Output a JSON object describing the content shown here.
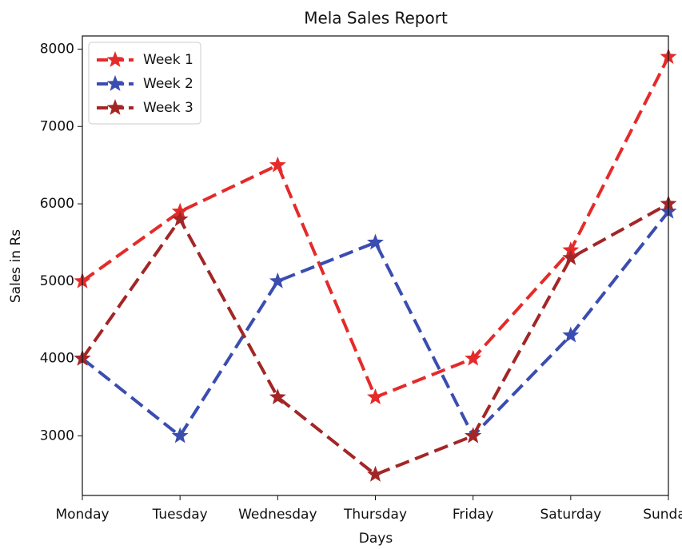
{
  "chart_data": {
    "type": "line",
    "title": "Mela Sales Report",
    "x_label": "Days",
    "y_label": "Sales in Rs",
    "categories": [
      "Monday",
      "Tuesday",
      "Wednesday",
      "Thursday",
      "Friday",
      "Saturday",
      "Sunday"
    ],
    "series": [
      {
        "name": "Week 1",
        "color": "#e52a2a",
        "values": [
          5000,
          5900,
          6500,
          3500,
          4000,
          5400,
          7900
        ]
      },
      {
        "name": "Week 2",
        "color": "#3a4db0",
        "values": [
          4000,
          3000,
          5000,
          5500,
          3000,
          4300,
          5900
        ]
      },
      {
        "name": "Week 3",
        "color": "#a32626",
        "values": [
          4000,
          5800,
          3500,
          2500,
          3000,
          5300,
          6000
        ]
      }
    ],
    "ylim": [
      2230,
      8170
    ],
    "yticks": [
      3000,
      4000,
      5000,
      6000,
      7000,
      8000
    ],
    "legend": "upper left",
    "line_style": "dashed",
    "marker": "star"
  }
}
